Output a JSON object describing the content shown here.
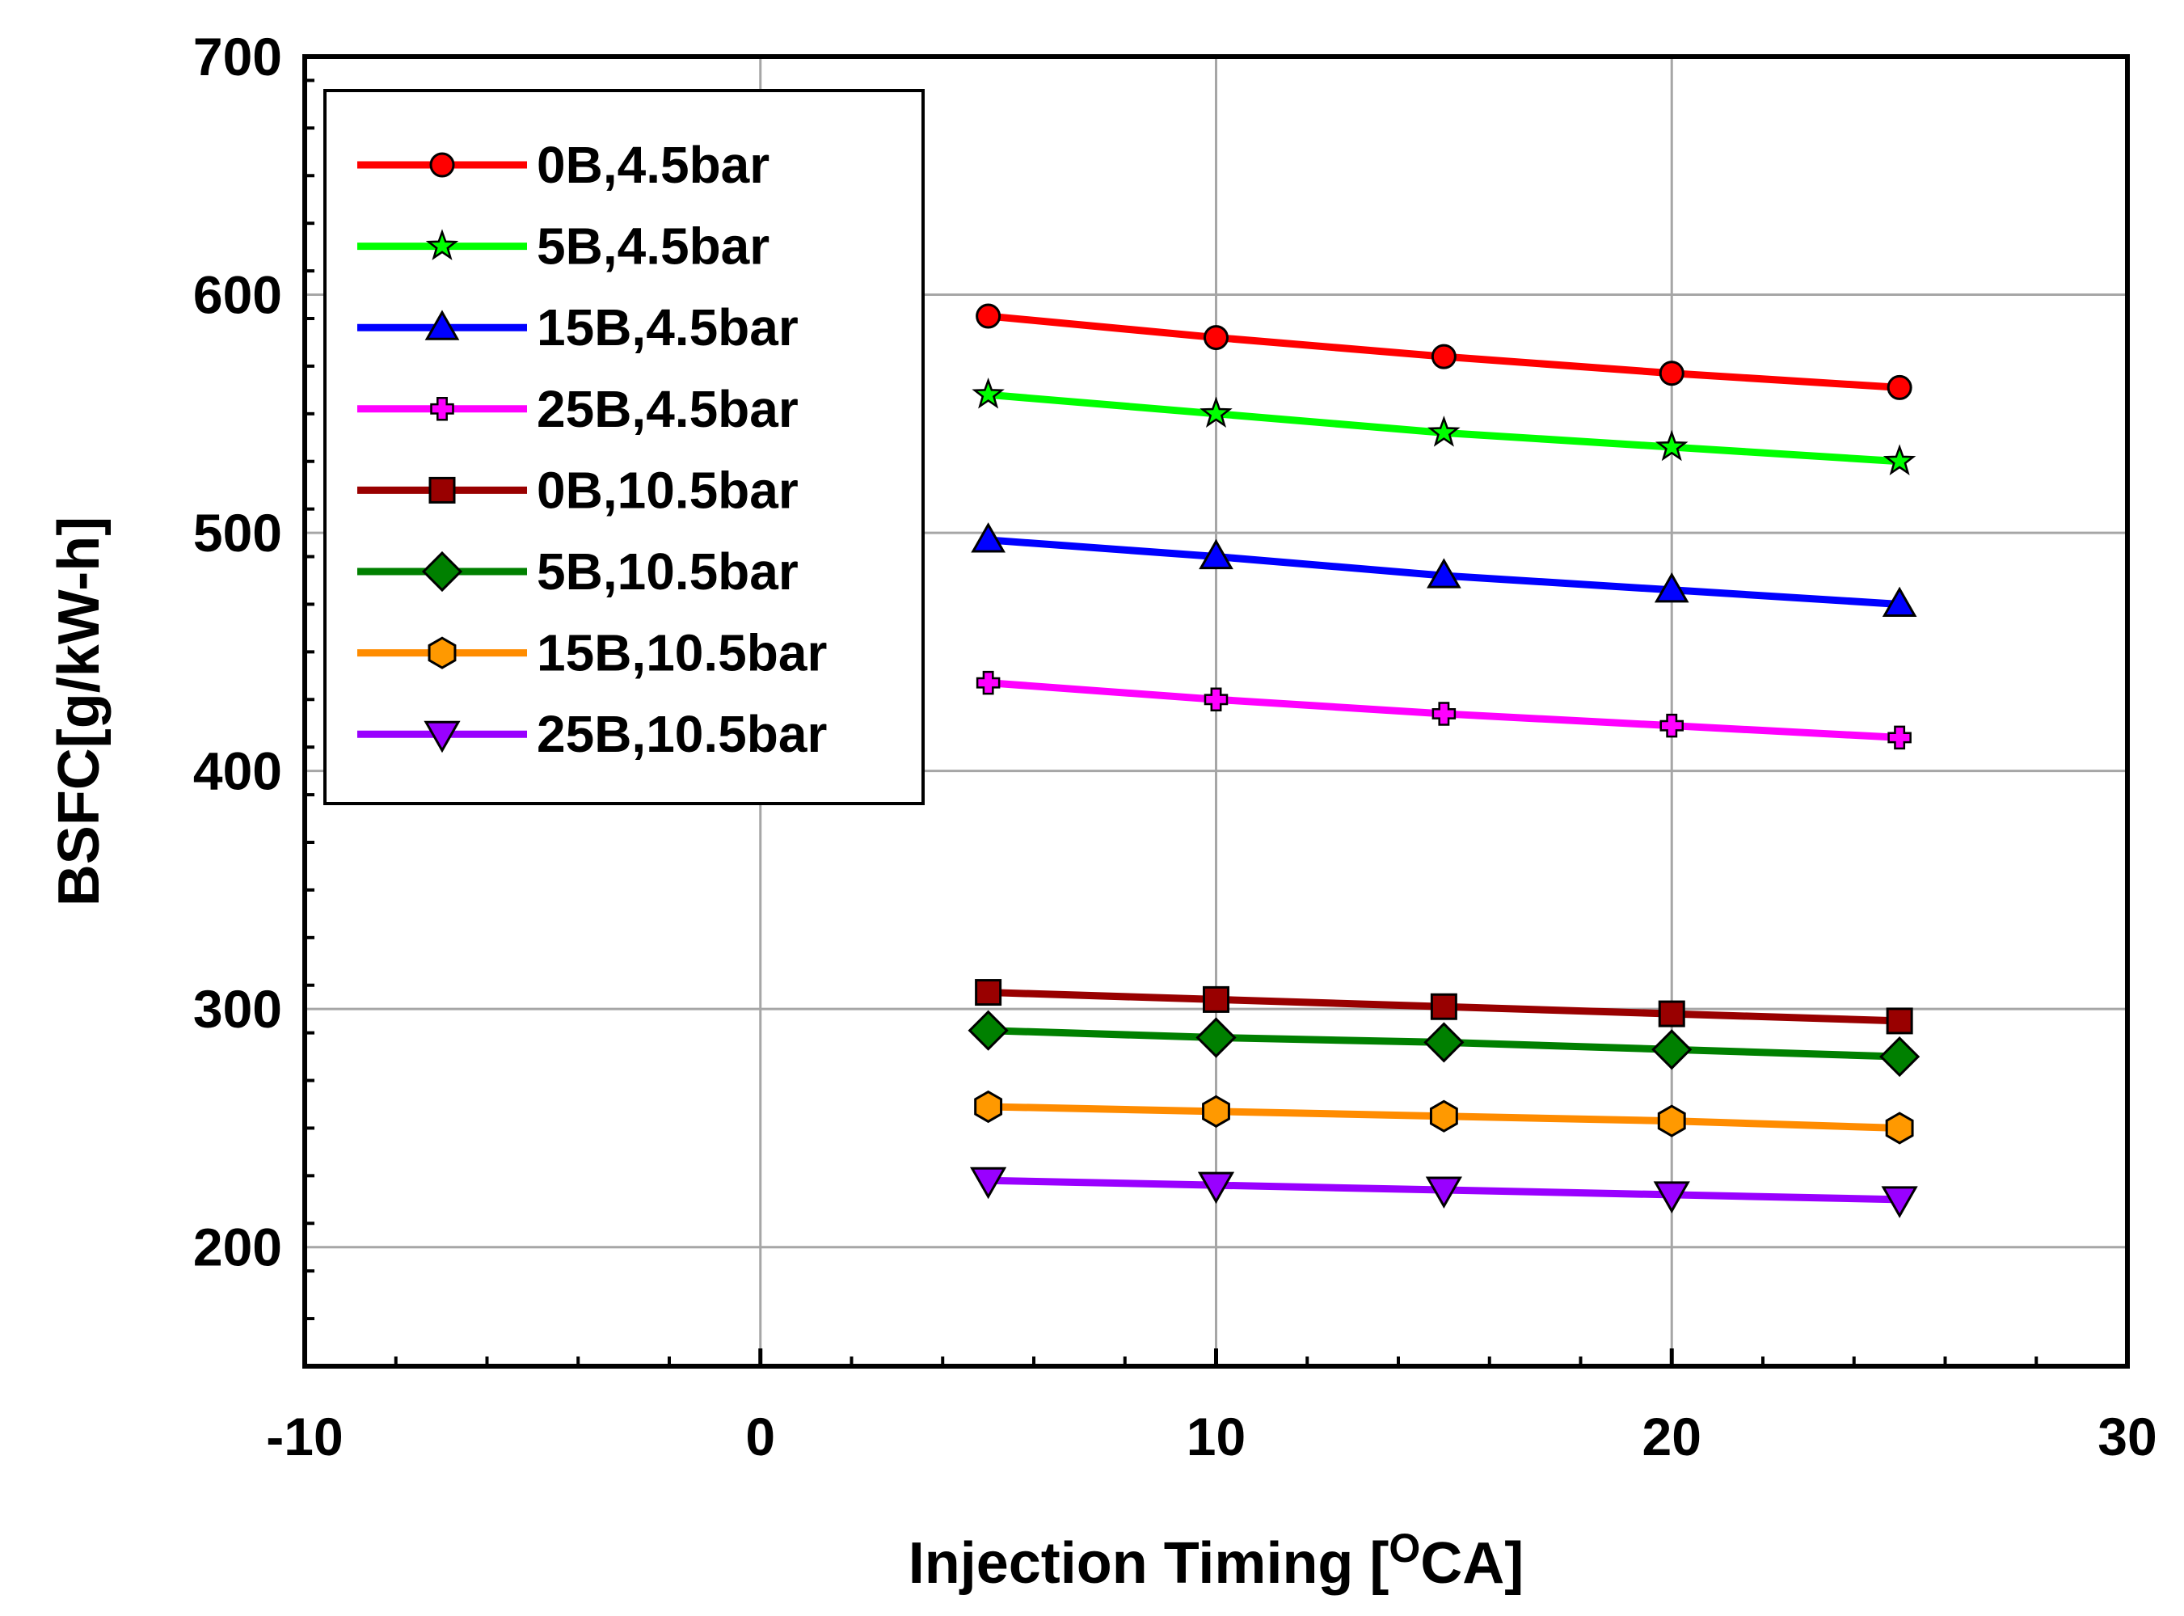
{
  "chart_data": {
    "type": "line",
    "title": "",
    "xlabel": "Injection Timing [",
    "xlabel_sup": "O",
    "xlabel_end": "CA]",
    "ylabel": "BSFC[g/kW-h]",
    "xlim": [
      -10,
      30
    ],
    "ylim": [
      150,
      700
    ],
    "xticks": [
      -10,
      0,
      10,
      20,
      30
    ],
    "yticks": [
      200,
      300,
      400,
      500,
      600,
      700
    ],
    "x_minor_step": 2,
    "y_minor_step": 20,
    "grid": true,
    "legend_position": "top-left",
    "x": [
      5,
      10,
      15,
      20,
      25
    ],
    "series": [
      {
        "name": "0B,4.5bar",
        "color": "#ff0000",
        "marker": "circle",
        "marker_color": "#ff0000",
        "values": [
          591,
          582,
          574,
          567,
          561
        ]
      },
      {
        "name": "5B,4.5bar",
        "color": "#00ff00",
        "marker": "star",
        "marker_color": "#00ff00",
        "values": [
          558,
          550,
          542,
          536,
          530
        ]
      },
      {
        "name": "15B,4.5bar",
        "color": "#0000ff",
        "marker": "triangle",
        "marker_color": "#0000ff",
        "values": [
          497,
          490,
          482,
          476,
          470
        ]
      },
      {
        "name": "25B,4.5bar",
        "color": "#ff00ff",
        "marker": "plus",
        "marker_color": "#ff00ff",
        "values": [
          437,
          430,
          424,
          419,
          414
        ]
      },
      {
        "name": "0B,10.5bar",
        "color": "#990000",
        "marker": "square",
        "marker_color": "#990000",
        "values": [
          307,
          304,
          301,
          298,
          295
        ]
      },
      {
        "name": "5B,10.5bar",
        "color": "#008000",
        "marker": "diamond",
        "marker_color": "#008000",
        "values": [
          291,
          288,
          286,
          283,
          280
        ]
      },
      {
        "name": "15B,10.5bar",
        "color": "#ff8c00",
        "marker": "hexagon",
        "marker_color": "#ff9900",
        "values": [
          259,
          257,
          255,
          253,
          250
        ]
      },
      {
        "name": "25B,10.5bar",
        "color": "#9900ff",
        "marker": "triangle-down",
        "marker_color": "#9900ff",
        "values": [
          228,
          226,
          224,
          222,
          220
        ]
      }
    ]
  }
}
